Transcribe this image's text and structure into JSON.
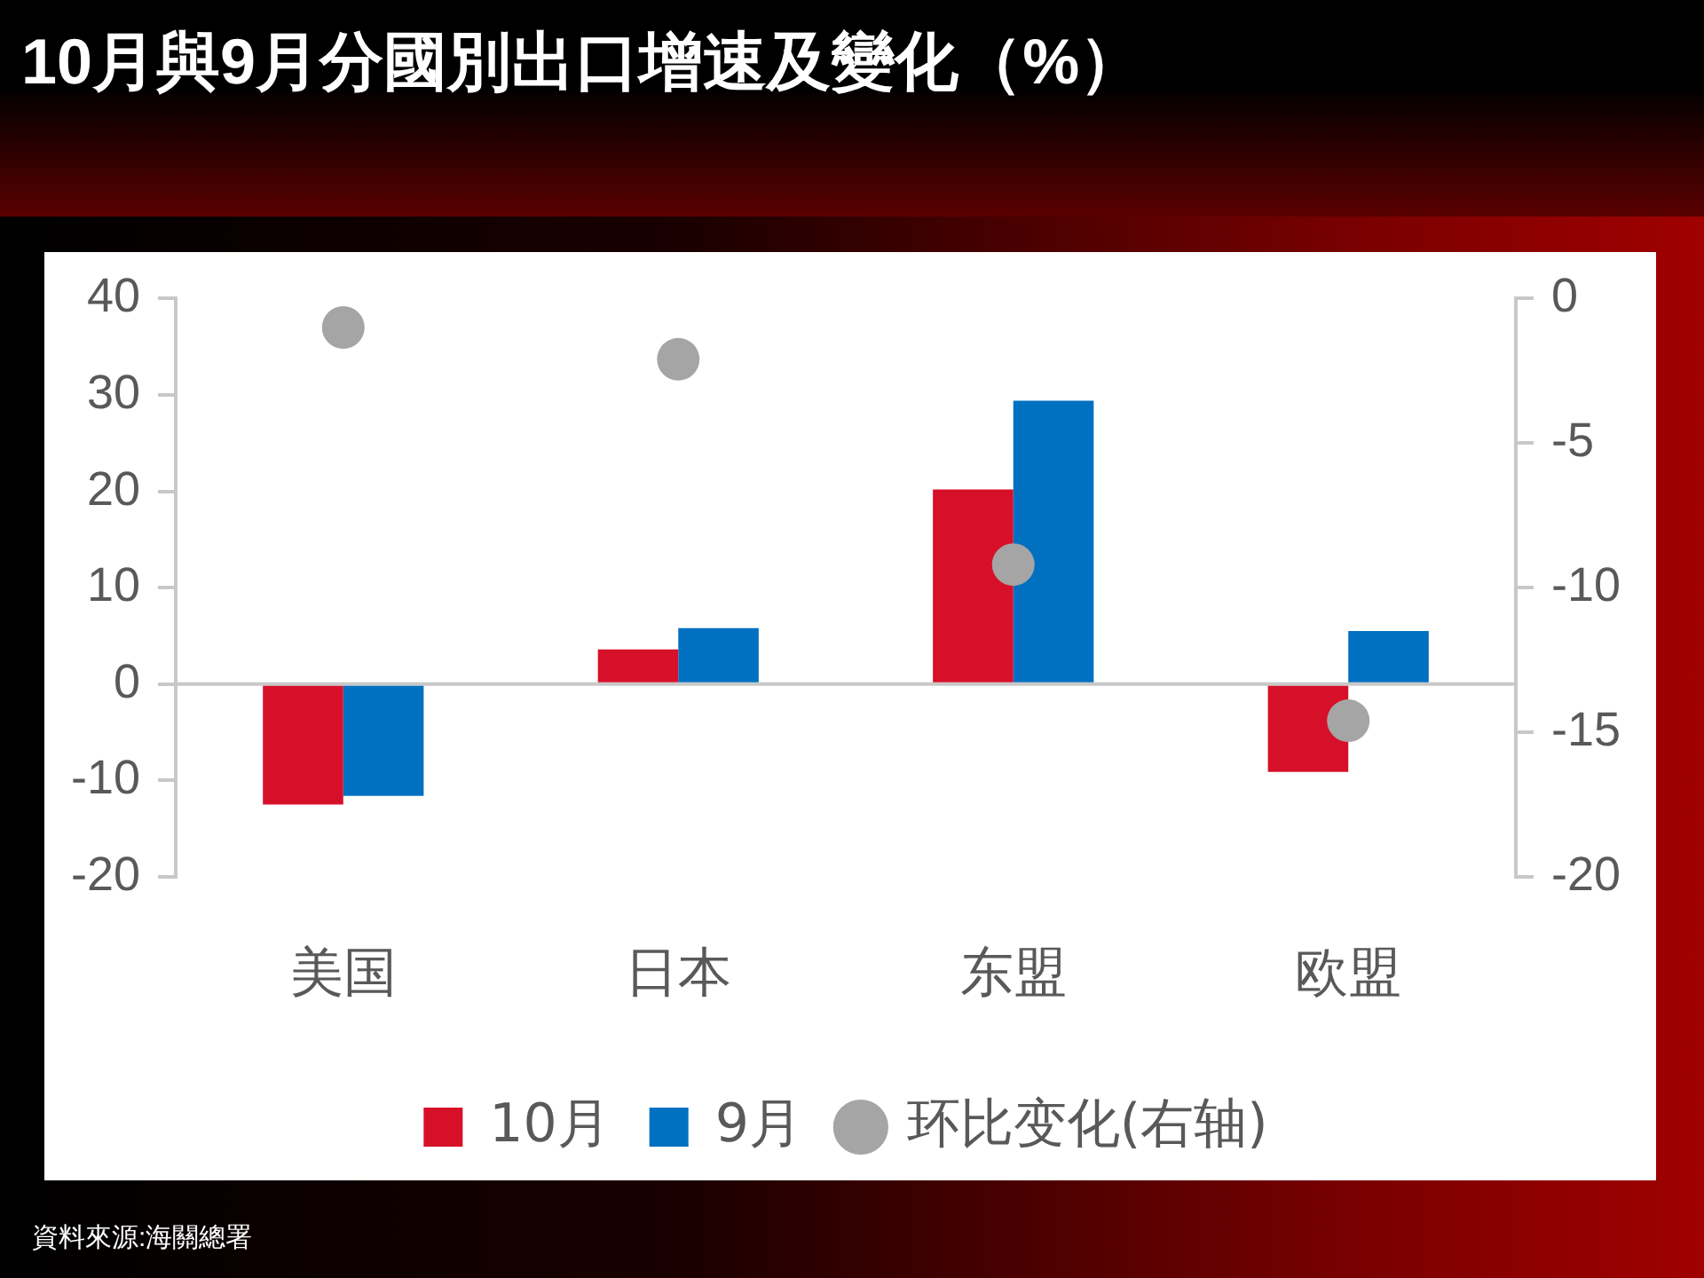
{
  "chart_data": {
    "type": "bar",
    "title": "10月與9月分國別出口增速及變化（%）",
    "categories": [
      "美国",
      "日本",
      "东盟",
      "欧盟"
    ],
    "series": [
      {
        "name": "10月",
        "color": "#d7102a",
        "values": [
          -12.5,
          3.6,
          20.2,
          -9.1
        ]
      },
      {
        "name": "9月",
        "color": "#0070c0",
        "values": [
          -11.6,
          5.8,
          29.4,
          5.5
        ]
      },
      {
        "name": "环比变化(右轴)",
        "type": "scatter",
        "axis": "y2",
        "color": "#a5a5a5",
        "values": [
          -1.0,
          -2.1,
          -9.2,
          -14.6
        ]
      }
    ],
    "ylim": [
      -20,
      40
    ],
    "yticks": [
      -20,
      -10,
      0,
      10,
      20,
      30,
      40
    ],
    "y2lim": [
      -20,
      0
    ],
    "y2ticks": [
      -20,
      -15,
      -10,
      -5,
      0
    ],
    "grid": false,
    "ref_lines": [
      {
        "axis": "y",
        "value": 0,
        "color": "#c8c8c8"
      }
    ],
    "legend": "bottom",
    "marker": "circle",
    "annotations": [
      "資料來源:海關總署"
    ]
  }
}
